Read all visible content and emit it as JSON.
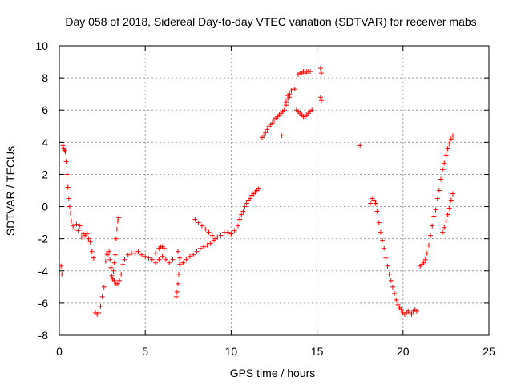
{
  "chart_data": {
    "type": "scatter",
    "title": "Day 058 of 2018, Sidereal Day-to-day VTEC variation (SDTVAR) for receiver mabs",
    "xlabel": "GPS time / hours",
    "ylabel": "SDTVAR / TECUs",
    "xlim": [
      0,
      25
    ],
    "ylim": [
      -8,
      10
    ],
    "xticks": [
      0,
      5,
      10,
      15,
      20,
      25
    ],
    "yticks": [
      -8,
      -6,
      -4,
      -2,
      0,
      2,
      4,
      6,
      8,
      10
    ],
    "grid": true,
    "marker": "+",
    "color": "#ff0000",
    "series": [
      {
        "name": "SDTVAR",
        "points": [
          [
            0.1,
            -3.7
          ],
          [
            0.15,
            -4.2
          ],
          [
            0.2,
            3.8
          ],
          [
            0.25,
            3.6
          ],
          [
            0.3,
            3.5
          ],
          [
            0.35,
            3.4
          ],
          [
            0.4,
            2.8
          ],
          [
            0.45,
            2.0
          ],
          [
            0.5,
            1.2
          ],
          [
            0.55,
            0.5
          ],
          [
            0.6,
            0.0
          ],
          [
            0.65,
            -0.4
          ],
          [
            0.7,
            -0.9
          ],
          [
            0.8,
            -1.2
          ],
          [
            0.9,
            -1.4
          ],
          [
            1.0,
            -1.1
          ],
          [
            1.1,
            -1.5
          ],
          [
            1.2,
            -1.2
          ],
          [
            1.3,
            -1.9
          ],
          [
            1.4,
            -1.7
          ],
          [
            1.5,
            -1.8
          ],
          [
            1.6,
            -1.7
          ],
          [
            1.7,
            -2.0
          ],
          [
            1.8,
            -2.2
          ],
          [
            1.9,
            -2.8
          ],
          [
            2.0,
            -3.2
          ],
          [
            2.1,
            -6.6
          ],
          [
            2.2,
            -6.7
          ],
          [
            2.3,
            -6.6
          ],
          [
            2.4,
            -6.2
          ],
          [
            2.5,
            -5.6
          ],
          [
            2.6,
            -5.0
          ],
          [
            2.7,
            -3.4
          ],
          [
            2.75,
            -2.9
          ],
          [
            2.8,
            -3.0
          ],
          [
            2.9,
            -2.8
          ],
          [
            2.95,
            -3.3
          ],
          [
            3.0,
            -3.8
          ],
          [
            3.05,
            -4.3
          ],
          [
            3.1,
            -4.5
          ],
          [
            3.15,
            -4.0
          ],
          [
            3.2,
            -3.5
          ],
          [
            3.25,
            -3.0
          ],
          [
            3.3,
            -2.0
          ],
          [
            3.35,
            -1.4
          ],
          [
            3.4,
            -0.9
          ],
          [
            3.45,
            -0.7
          ],
          [
            3.2,
            -4.6
          ],
          [
            3.3,
            -4.8
          ],
          [
            3.4,
            -4.8
          ],
          [
            3.5,
            -4.6
          ],
          [
            3.6,
            -4.2
          ],
          [
            3.7,
            -3.6
          ],
          [
            3.8,
            -3.3
          ],
          [
            4.0,
            -3.0
          ],
          [
            4.2,
            -2.9
          ],
          [
            4.4,
            -2.9
          ],
          [
            4.6,
            -2.8
          ],
          [
            4.8,
            -3.0
          ],
          [
            5.0,
            -3.1
          ],
          [
            5.2,
            -3.2
          ],
          [
            5.4,
            -3.3
          ],
          [
            5.6,
            -3.5
          ],
          [
            5.8,
            -3.3
          ],
          [
            6.0,
            -3.1
          ],
          [
            6.2,
            -3.3
          ],
          [
            6.4,
            -3.5
          ],
          [
            6.6,
            -3.3
          ],
          [
            5.6,
            -2.9
          ],
          [
            5.8,
            -2.6
          ],
          [
            5.9,
            -2.5
          ],
          [
            6.0,
            -2.5
          ],
          [
            6.1,
            -2.6
          ],
          [
            6.8,
            -5.6
          ],
          [
            6.85,
            -5.3
          ],
          [
            6.9,
            -4.8
          ],
          [
            6.95,
            -4.2
          ],
          [
            7.0,
            -3.6
          ],
          [
            6.9,
            -2.8
          ],
          [
            7.0,
            -3.2
          ],
          [
            7.2,
            -3.5
          ],
          [
            7.4,
            -3.3
          ],
          [
            7.6,
            -3.1
          ],
          [
            7.8,
            -3.0
          ],
          [
            8.0,
            -2.8
          ],
          [
            8.2,
            -2.6
          ],
          [
            8.4,
            -2.5
          ],
          [
            8.6,
            -2.4
          ],
          [
            8.8,
            -2.3
          ],
          [
            9.0,
            -2.1
          ],
          [
            9.2,
            -1.9
          ],
          [
            9.4,
            -1.8
          ],
          [
            7.9,
            -0.8
          ],
          [
            8.1,
            -1.0
          ],
          [
            8.3,
            -1.2
          ],
          [
            8.5,
            -1.4
          ],
          [
            8.7,
            -1.6
          ],
          [
            8.9,
            -1.8
          ],
          [
            9.1,
            -2.0
          ],
          [
            9.6,
            -1.6
          ],
          [
            9.8,
            -1.6
          ],
          [
            10.0,
            -1.7
          ],
          [
            10.2,
            -1.5
          ],
          [
            10.4,
            -1.2
          ],
          [
            10.5,
            -0.8
          ],
          [
            10.6,
            -0.5
          ],
          [
            10.7,
            -0.3
          ],
          [
            10.8,
            0.0
          ],
          [
            10.9,
            0.2
          ],
          [
            11.0,
            0.4
          ],
          [
            11.1,
            0.5
          ],
          [
            11.2,
            0.7
          ],
          [
            11.3,
            0.8
          ],
          [
            11.4,
            0.9
          ],
          [
            11.5,
            1.0
          ],
          [
            11.6,
            1.1
          ],
          [
            11.8,
            4.3
          ],
          [
            11.9,
            4.4
          ],
          [
            12.0,
            4.6
          ],
          [
            12.1,
            4.8
          ],
          [
            12.2,
            5.0
          ],
          [
            12.3,
            5.1
          ],
          [
            12.4,
            5.2
          ],
          [
            12.5,
            5.4
          ],
          [
            12.6,
            5.5
          ],
          [
            12.7,
            5.6
          ],
          [
            12.8,
            5.7
          ],
          [
            12.9,
            5.8
          ],
          [
            13.0,
            5.9
          ],
          [
            13.1,
            6.0
          ],
          [
            13.2,
            6.3
          ],
          [
            13.3,
            6.9
          ],
          [
            13.4,
            7.0
          ],
          [
            13.5,
            7.2
          ],
          [
            13.6,
            7.3
          ],
          [
            13.7,
            7.3
          ],
          [
            12.95,
            4.4
          ],
          [
            13.2,
            6.5
          ],
          [
            13.3,
            6.7
          ],
          [
            13.4,
            6.8
          ],
          [
            13.8,
            6.0
          ],
          [
            13.9,
            5.9
          ],
          [
            14.0,
            5.8
          ],
          [
            14.1,
            5.7
          ],
          [
            14.2,
            5.6
          ],
          [
            14.3,
            5.6
          ],
          [
            14.4,
            5.7
          ],
          [
            14.5,
            5.8
          ],
          [
            14.6,
            5.9
          ],
          [
            14.7,
            6.0
          ],
          [
            13.9,
            8.2
          ],
          [
            14.0,
            8.3
          ],
          [
            14.1,
            8.3
          ],
          [
            14.2,
            8.4
          ],
          [
            14.3,
            8.3
          ],
          [
            14.4,
            8.4
          ],
          [
            14.5,
            8.4
          ],
          [
            14.6,
            8.4
          ],
          [
            15.2,
            8.6
          ],
          [
            15.25,
            8.3
          ],
          [
            15.2,
            6.8
          ],
          [
            15.25,
            6.6
          ],
          [
            17.5,
            3.8
          ],
          [
            18.1,
            0.2
          ],
          [
            18.2,
            0.5
          ],
          [
            18.3,
            0.4
          ],
          [
            18.4,
            0.2
          ],
          [
            18.5,
            -0.3
          ],
          [
            18.6,
            -1.0
          ],
          [
            18.7,
            -1.6
          ],
          [
            18.8,
            -2.1
          ],
          [
            18.9,
            -2.6
          ],
          [
            19.0,
            -3.2
          ],
          [
            19.1,
            -3.7
          ],
          [
            19.2,
            -4.2
          ],
          [
            19.3,
            -4.6
          ],
          [
            19.4,
            -5.0
          ],
          [
            19.5,
            -5.4
          ],
          [
            19.6,
            -5.8
          ],
          [
            19.7,
            -6.1
          ],
          [
            19.8,
            -6.3
          ],
          [
            19.9,
            -6.4
          ],
          [
            20.0,
            -6.6
          ],
          [
            20.1,
            -6.7
          ],
          [
            20.2,
            -6.6
          ],
          [
            20.3,
            -6.5
          ],
          [
            20.4,
            -6.6
          ],
          [
            20.5,
            -6.7
          ],
          [
            20.6,
            -6.5
          ],
          [
            20.7,
            -6.4
          ],
          [
            20.8,
            -6.5
          ],
          [
            21.0,
            -3.7
          ],
          [
            21.1,
            -3.6
          ],
          [
            21.2,
            -3.5
          ],
          [
            21.3,
            -3.3
          ],
          [
            21.4,
            -2.9
          ],
          [
            21.5,
            -2.4
          ],
          [
            21.6,
            -1.8
          ],
          [
            21.7,
            -1.2
          ],
          [
            21.8,
            -0.6
          ],
          [
            21.9,
            -0.2
          ],
          [
            22.0,
            0.5
          ],
          [
            22.1,
            1.0
          ],
          [
            22.2,
            1.7
          ],
          [
            22.3,
            2.3
          ],
          [
            22.4,
            2.7
          ],
          [
            22.5,
            3.2
          ],
          [
            22.6,
            3.6
          ],
          [
            22.7,
            3.9
          ],
          [
            22.8,
            4.2
          ],
          [
            22.9,
            4.4
          ],
          [
            22.3,
            -1.6
          ],
          [
            22.4,
            -1.3
          ],
          [
            22.5,
            -0.9
          ],
          [
            22.6,
            -0.5
          ],
          [
            22.7,
            -0.1
          ],
          [
            22.8,
            0.4
          ],
          [
            22.9,
            0.8
          ]
        ]
      }
    ]
  }
}
